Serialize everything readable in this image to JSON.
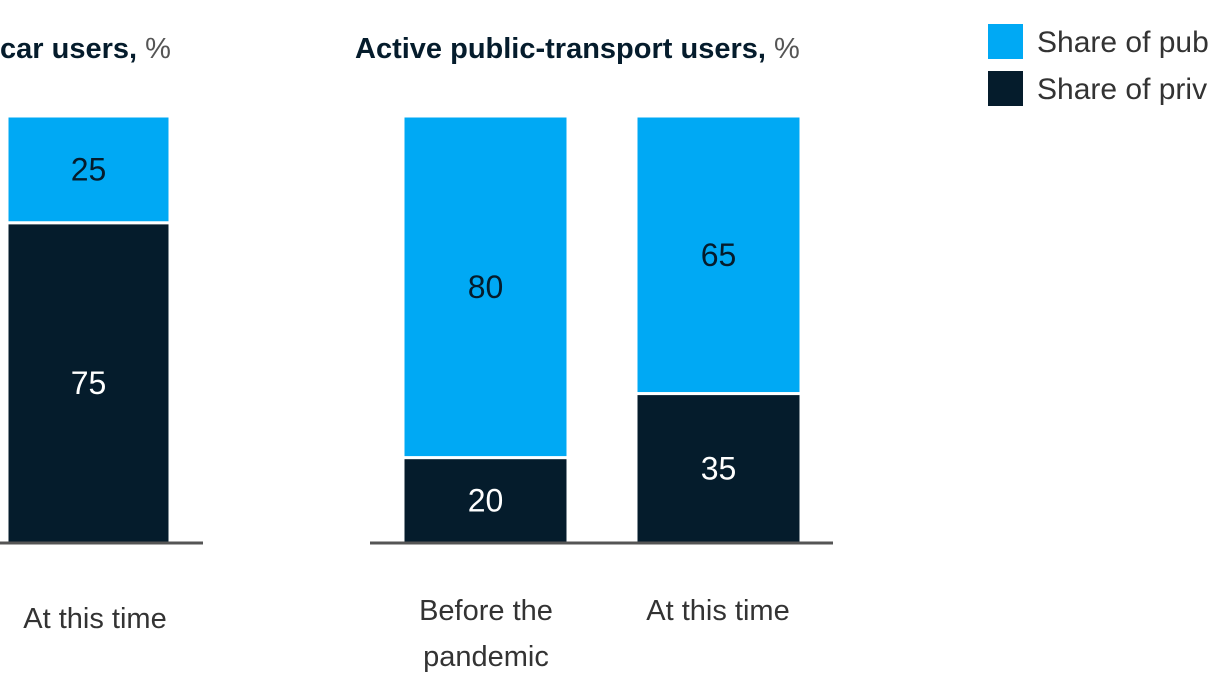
{
  "colors": {
    "public": "#00a9f4",
    "private": "#051c2c",
    "axis": "#555555",
    "label_on_light": "#051c2c",
    "label_on_dark": "#ffffff"
  },
  "legend": [
    {
      "name": "Share of pub",
      "color_key": "public"
    },
    {
      "name": "Share of priv",
      "color_key": "private"
    }
  ],
  "chart_data": [
    {
      "type": "bar",
      "stacked": true,
      "title": "car users,",
      "title_unit": "%",
      "categories": [
        "",
        "At this time"
      ],
      "series": [
        {
          "name": "Share of priv",
          "values": [
            null,
            75
          ]
        },
        {
          "name": "Share of pub",
          "values": [
            null,
            25
          ]
        }
      ],
      "ylim": [
        0,
        100
      ],
      "grid": false
    },
    {
      "type": "bar",
      "stacked": true,
      "title": "Active public-transport users,",
      "title_unit": "%",
      "categories": [
        "Before the\npandemic",
        "At this time"
      ],
      "series": [
        {
          "name": "Share of priv",
          "values": [
            20,
            35
          ]
        },
        {
          "name": "Share of pub",
          "values": [
            80,
            65
          ]
        }
      ],
      "ylim": [
        0,
        100
      ],
      "grid": false
    }
  ]
}
